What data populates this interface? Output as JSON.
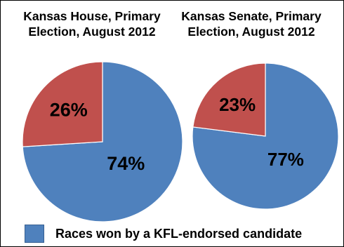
{
  "chart_data": [
    {
      "type": "pie",
      "title": "Kansas House, Primary\nElection, August 2012",
      "title_lines": [
        "Kansas House, Primary",
        "Election, August 2012"
      ],
      "slices": [
        {
          "label": "74%",
          "value": 74,
          "color": "#4f81bd"
        },
        {
          "label": "26%",
          "value": 26,
          "color": "#c0504d"
        }
      ]
    },
    {
      "type": "pie",
      "title": "Kansas Senate, Primary\nElection, August 2012",
      "title_lines": [
        "Kansas Senate, Primary",
        "Election, August 2012"
      ],
      "slices": [
        {
          "label": "77%",
          "value": 77,
          "color": "#4f81bd"
        },
        {
          "label": "23%",
          "value": 23,
          "color": "#c0504d"
        }
      ]
    }
  ],
  "legend": {
    "label": "Races won by a KFL-endorsed candidate",
    "color": "#4f81bd"
  }
}
